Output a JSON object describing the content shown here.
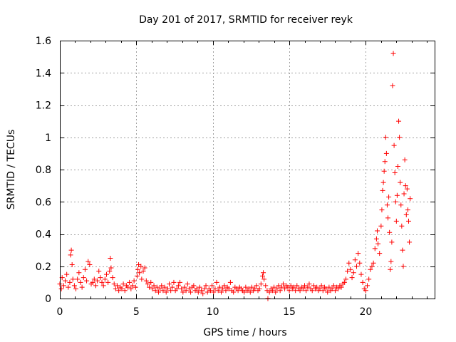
{
  "chart_data": {
    "type": "scatter",
    "title": "Day 201 of 2017, SRMTID for receiver reyk",
    "xlabel": "GPS time / hours",
    "ylabel": "SRMTID / TECUs",
    "xlim": [
      0,
      24.5
    ],
    "ylim": [
      0,
      1.6
    ],
    "x_ticks": [
      0,
      5,
      10,
      15,
      20
    ],
    "x_tick_labels": [
      "0",
      "5",
      "10",
      "15",
      "20"
    ],
    "y_ticks": [
      0,
      0.2,
      0.4,
      0.6,
      0.8,
      1.0,
      1.2,
      1.4,
      1.6
    ],
    "y_tick_labels": [
      "0",
      "0.2",
      "0.4",
      "0.6",
      "0.8",
      "1",
      "1.2",
      "1.4",
      "1.6"
    ],
    "grid": true,
    "marker": "+",
    "series": [
      {
        "name": "SRMTID",
        "color": "#ff0000",
        "points": [
          [
            0.0,
            0.09
          ],
          [
            0.1,
            0.06
          ],
          [
            0.15,
            0.13
          ],
          [
            0.25,
            0.08
          ],
          [
            0.35,
            0.11
          ],
          [
            0.45,
            0.15
          ],
          [
            0.55,
            0.07
          ],
          [
            0.65,
            0.1
          ],
          [
            0.7,
            0.27
          ],
          [
            0.75,
            0.3
          ],
          [
            0.8,
            0.21
          ],
          [
            0.85,
            0.12
          ],
          [
            0.95,
            0.08
          ],
          [
            1.05,
            0.06
          ],
          [
            1.15,
            0.12
          ],
          [
            1.25,
            0.16
          ],
          [
            1.35,
            0.1
          ],
          [
            1.45,
            0.07
          ],
          [
            1.55,
            0.13
          ],
          [
            1.65,
            0.18
          ],
          [
            1.75,
            0.11
          ],
          [
            1.85,
            0.23
          ],
          [
            1.95,
            0.21
          ],
          [
            2.05,
            0.09
          ],
          [
            2.15,
            0.1
          ],
          [
            2.25,
            0.12
          ],
          [
            2.35,
            0.08
          ],
          [
            2.45,
            0.11
          ],
          [
            2.55,
            0.17
          ],
          [
            2.65,
            0.13
          ],
          [
            2.75,
            0.1
          ],
          [
            2.85,
            0.08
          ],
          [
            2.95,
            0.12
          ],
          [
            3.05,
            0.15
          ],
          [
            3.15,
            0.1
          ],
          [
            3.25,
            0.17
          ],
          [
            3.3,
            0.25
          ],
          [
            3.35,
            0.19
          ],
          [
            3.45,
            0.13
          ],
          [
            3.55,
            0.09
          ],
          [
            3.65,
            0.06
          ],
          [
            3.75,
            0.08
          ],
          [
            3.85,
            0.05
          ],
          [
            3.95,
            0.07
          ],
          [
            4.05,
            0.06
          ],
          [
            4.15,
            0.09
          ],
          [
            4.25,
            0.05
          ],
          [
            4.35,
            0.08
          ],
          [
            4.45,
            0.07
          ],
          [
            4.55,
            0.1
          ],
          [
            4.65,
            0.06
          ],
          [
            4.75,
            0.08
          ],
          [
            4.85,
            0.11
          ],
          [
            4.95,
            0.07
          ],
          [
            5.05,
            0.14
          ],
          [
            5.1,
            0.18
          ],
          [
            5.15,
            0.21
          ],
          [
            5.2,
            0.16
          ],
          [
            5.3,
            0.2
          ],
          [
            5.35,
            0.12
          ],
          [
            5.45,
            0.17
          ],
          [
            5.55,
            0.19
          ],
          [
            5.65,
            0.11
          ],
          [
            5.75,
            0.09
          ],
          [
            5.85,
            0.07
          ],
          [
            5.95,
            0.1
          ],
          [
            6.05,
            0.06
          ],
          [
            6.15,
            0.08
          ],
          [
            6.25,
            0.05
          ],
          [
            6.35,
            0.07
          ],
          [
            6.45,
            0.04
          ],
          [
            6.55,
            0.06
          ],
          [
            6.65,
            0.08
          ],
          [
            6.75,
            0.05
          ],
          [
            6.85,
            0.07
          ],
          [
            6.95,
            0.04
          ],
          [
            7.05,
            0.06
          ],
          [
            7.15,
            0.09
          ],
          [
            7.25,
            0.05
          ],
          [
            7.35,
            0.07
          ],
          [
            7.45,
            0.1
          ],
          [
            7.55,
            0.05
          ],
          [
            7.65,
            0.06
          ],
          [
            7.75,
            0.08
          ],
          [
            7.85,
            0.1
          ],
          [
            7.95,
            0.06
          ],
          [
            8.05,
            0.04
          ],
          [
            8.15,
            0.07
          ],
          [
            8.25,
            0.05
          ],
          [
            8.35,
            0.09
          ],
          [
            8.45,
            0.06
          ],
          [
            8.55,
            0.04
          ],
          [
            8.65,
            0.07
          ],
          [
            8.75,
            0.08
          ],
          [
            8.85,
            0.05
          ],
          [
            8.95,
            0.06
          ],
          [
            9.05,
            0.04
          ],
          [
            9.15,
            0.07
          ],
          [
            9.25,
            0.05
          ],
          [
            9.35,
            0.03
          ],
          [
            9.45,
            0.06
          ],
          [
            9.55,
            0.08
          ],
          [
            9.65,
            0.04
          ],
          [
            9.75,
            0.06
          ],
          [
            9.85,
            0.05
          ],
          [
            9.95,
            0.08
          ],
          [
            10.05,
            0.04
          ],
          [
            10.15,
            0.06
          ],
          [
            10.25,
            0.1
          ],
          [
            10.35,
            0.05
          ],
          [
            10.45,
            0.07
          ],
          [
            10.55,
            0.04
          ],
          [
            10.65,
            0.06
          ],
          [
            10.75,
            0.08
          ],
          [
            10.85,
            0.05
          ],
          [
            10.95,
            0.07
          ],
          [
            11.05,
            0.06
          ],
          [
            11.15,
            0.1
          ],
          [
            11.25,
            0.05
          ],
          [
            11.35,
            0.04
          ],
          [
            11.45,
            0.07
          ],
          [
            11.55,
            0.06
          ],
          [
            11.65,
            0.05
          ],
          [
            11.75,
            0.07
          ],
          [
            11.85,
            0.06
          ],
          [
            11.95,
            0.05
          ],
          [
            12.05,
            0.04
          ],
          [
            12.15,
            0.07
          ],
          [
            12.25,
            0.05
          ],
          [
            12.35,
            0.06
          ],
          [
            12.45,
            0.04
          ],
          [
            12.55,
            0.07
          ],
          [
            12.65,
            0.05
          ],
          [
            12.75,
            0.06
          ],
          [
            12.85,
            0.08
          ],
          [
            12.95,
            0.05
          ],
          [
            13.05,
            0.06
          ],
          [
            13.15,
            0.09
          ],
          [
            13.25,
            0.14
          ],
          [
            13.3,
            0.16
          ],
          [
            13.35,
            0.12
          ],
          [
            13.45,
            0.08
          ],
          [
            13.55,
            0.05
          ],
          [
            13.6,
            0.0
          ],
          [
            13.7,
            0.04
          ],
          [
            13.8,
            0.06
          ],
          [
            13.9,
            0.05
          ],
          [
            14.0,
            0.07
          ],
          [
            14.1,
            0.04
          ],
          [
            14.2,
            0.06
          ],
          [
            14.3,
            0.08
          ],
          [
            14.4,
            0.05
          ],
          [
            14.5,
            0.07
          ],
          [
            14.6,
            0.09
          ],
          [
            14.7,
            0.06
          ],
          [
            14.8,
            0.08
          ],
          [
            14.9,
            0.07
          ],
          [
            15.0,
            0.05
          ],
          [
            15.1,
            0.08
          ],
          [
            15.2,
            0.06
          ],
          [
            15.3,
            0.07
          ],
          [
            15.4,
            0.05
          ],
          [
            15.5,
            0.08
          ],
          [
            15.6,
            0.06
          ],
          [
            15.7,
            0.05
          ],
          [
            15.8,
            0.07
          ],
          [
            15.9,
            0.06
          ],
          [
            16.0,
            0.08
          ],
          [
            16.1,
            0.05
          ],
          [
            16.2,
            0.07
          ],
          [
            16.3,
            0.09
          ],
          [
            16.4,
            0.06
          ],
          [
            16.5,
            0.05
          ],
          [
            16.6,
            0.08
          ],
          [
            16.7,
            0.06
          ],
          [
            16.8,
            0.07
          ],
          [
            16.9,
            0.05
          ],
          [
            17.0,
            0.06
          ],
          [
            17.1,
            0.08
          ],
          [
            17.2,
            0.05
          ],
          [
            17.3,
            0.07
          ],
          [
            17.4,
            0.06
          ],
          [
            17.5,
            0.04
          ],
          [
            17.6,
            0.07
          ],
          [
            17.7,
            0.05
          ],
          [
            17.8,
            0.06
          ],
          [
            17.9,
            0.08
          ],
          [
            18.0,
            0.05
          ],
          [
            18.1,
            0.07
          ],
          [
            18.2,
            0.06
          ],
          [
            18.3,
            0.08
          ],
          [
            18.4,
            0.07
          ],
          [
            18.5,
            0.09
          ],
          [
            18.6,
            0.1
          ],
          [
            18.7,
            0.12
          ],
          [
            18.8,
            0.17
          ],
          [
            18.9,
            0.22
          ],
          [
            19.0,
            0.18
          ],
          [
            19.1,
            0.13
          ],
          [
            19.2,
            0.16
          ],
          [
            19.3,
            0.24
          ],
          [
            19.4,
            0.2
          ],
          [
            19.5,
            0.28
          ],
          [
            19.6,
            0.22
          ],
          [
            19.7,
            0.15
          ],
          [
            19.8,
            0.1
          ],
          [
            19.9,
            0.06
          ],
          [
            20.0,
            0.05
          ],
          [
            20.1,
            0.08
          ],
          [
            20.2,
            0.12
          ],
          [
            20.3,
            0.18
          ],
          [
            20.4,
            0.2
          ],
          [
            20.5,
            0.22
          ],
          [
            20.6,
            0.31
          ],
          [
            20.7,
            0.37
          ],
          [
            20.75,
            0.42
          ],
          [
            20.8,
            0.34
          ],
          [
            20.9,
            0.28
          ],
          [
            21.0,
            0.45
          ],
          [
            21.05,
            0.55
          ],
          [
            21.1,
            0.67
          ],
          [
            21.15,
            0.72
          ],
          [
            21.2,
            0.79
          ],
          [
            21.25,
            0.85
          ],
          [
            21.3,
            1.0
          ],
          [
            21.35,
            0.9
          ],
          [
            21.4,
            0.58
          ],
          [
            21.45,
            0.5
          ],
          [
            21.5,
            0.63
          ],
          [
            21.55,
            0.41
          ],
          [
            21.6,
            0.18
          ],
          [
            21.65,
            0.23
          ],
          [
            21.7,
            0.35
          ],
          [
            21.75,
            1.32
          ],
          [
            21.8,
            1.52
          ],
          [
            21.85,
            0.95
          ],
          [
            21.9,
            0.78
          ],
          [
            21.95,
            0.6
          ],
          [
            22.0,
            0.48
          ],
          [
            22.05,
            0.64
          ],
          [
            22.1,
            0.82
          ],
          [
            22.15,
            1.1
          ],
          [
            22.2,
            1.0
          ],
          [
            22.25,
            0.72
          ],
          [
            22.3,
            0.58
          ],
          [
            22.35,
            0.45
          ],
          [
            22.4,
            0.3
          ],
          [
            22.45,
            0.2
          ],
          [
            22.5,
            0.65
          ],
          [
            22.55,
            0.86
          ],
          [
            22.6,
            0.7
          ],
          [
            22.65,
            0.52
          ],
          [
            22.7,
            0.68
          ],
          [
            22.75,
            0.55
          ],
          [
            22.8,
            0.48
          ],
          [
            22.85,
            0.35
          ],
          [
            22.9,
            0.62
          ]
        ]
      }
    ]
  }
}
